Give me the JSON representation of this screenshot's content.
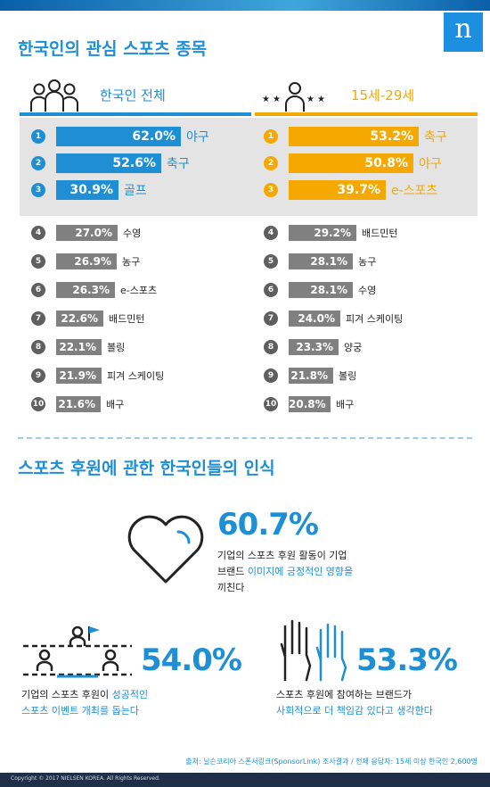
{
  "brand": {
    "logo": "n",
    "primary_color": "#1e8fd5",
    "secondary_color": "#f4a800",
    "rest_bar_color": "#808080",
    "rest_badge_color": "#5f5f5f"
  },
  "section1": {
    "title": "한국인의 관심 스포츠 종목"
  },
  "section2": {
    "title": "스포츠 후원에 관한 한국인들의 인식"
  },
  "headers": {
    "left_label": "한국인 전체",
    "left_icon": "group-people-icon",
    "right_label": "15세-29세",
    "right_icon": "young-person-stars-icon"
  },
  "chart_data": [
    {
      "type": "bar",
      "title": "한국인 전체",
      "unit": "%",
      "ranks": [
        "1",
        "2",
        "3",
        "4",
        "5",
        "6",
        "7",
        "8",
        "9",
        "10"
      ],
      "categories": [
        "야구",
        "축구",
        "골프",
        "수영",
        "농구",
        "e-스포츠",
        "배드민턴",
        "볼링",
        "피겨 스케이팅",
        "배구"
      ],
      "values": [
        62.0,
        52.6,
        30.9,
        27.0,
        26.9,
        26.3,
        22.6,
        22.1,
        21.9,
        21.6
      ],
      "labels": [
        "62.0%",
        "52.6%",
        "30.9%",
        "27.0%",
        "26.9%",
        "26.3%",
        "22.6%",
        "22.1%",
        "21.9%",
        "21.6%"
      ],
      "top3_color": "#1e8fd5",
      "rest_color": "#808080"
    },
    {
      "type": "bar",
      "title": "15세-29세",
      "unit": "%",
      "ranks": [
        "1",
        "2",
        "3",
        "4",
        "5",
        "6",
        "7",
        "8",
        "9",
        "10"
      ],
      "categories": [
        "축구",
        "야구",
        "e-스포츠",
        "배드민턴",
        "농구",
        "수영",
        "피겨 스케이팅",
        "양궁",
        "볼링",
        "배구"
      ],
      "values": [
        53.2,
        50.8,
        39.7,
        29.2,
        28.1,
        28.1,
        24.0,
        23.3,
        21.8,
        20.8
      ],
      "labels": [
        "53.2%",
        "50.8%",
        "39.7%",
        "29.2%",
        "28.1%",
        "28.1%",
        "24.0%",
        "23.3%",
        "21.8%",
        "20.8%"
      ],
      "top3_color": "#f4a800",
      "rest_color": "#808080"
    }
  ],
  "stats": [
    {
      "value": "60.7%",
      "icon": "heart-outline-icon",
      "lines": [
        [
          "기업의 스포츠 후원 활동이 기업"
        ],
        [
          "브랜드 ",
          "이미지에 긍정적인 영향을"
        ],
        [
          "끼친다"
        ]
      ]
    },
    {
      "value": "54.0%",
      "icon": "podium-flag-icon",
      "lines": [
        [
          "기업의 스포츠 후원이 ",
          "성공적인"
        ],
        [
          "",
          "스포츠 이벤트 개최를 돕는다"
        ]
      ]
    },
    {
      "value": "53.3%",
      "icon": "raised-hands-icon",
      "lines": [
        [
          "스포츠 후원에 참여하는 브랜드가"
        ],
        [
          "",
          "사회적으로 더 책임감 있다고 생각한다"
        ]
      ]
    }
  ],
  "source": "출처: 닐슨코리아 스폰서링크(SponsorLink) 조사결과 / 전체 응답자: 15세 이상 한국인 2,600명",
  "copyright": "Copyright © 2017 NIELSEN KOREA. All Rights Reserved."
}
